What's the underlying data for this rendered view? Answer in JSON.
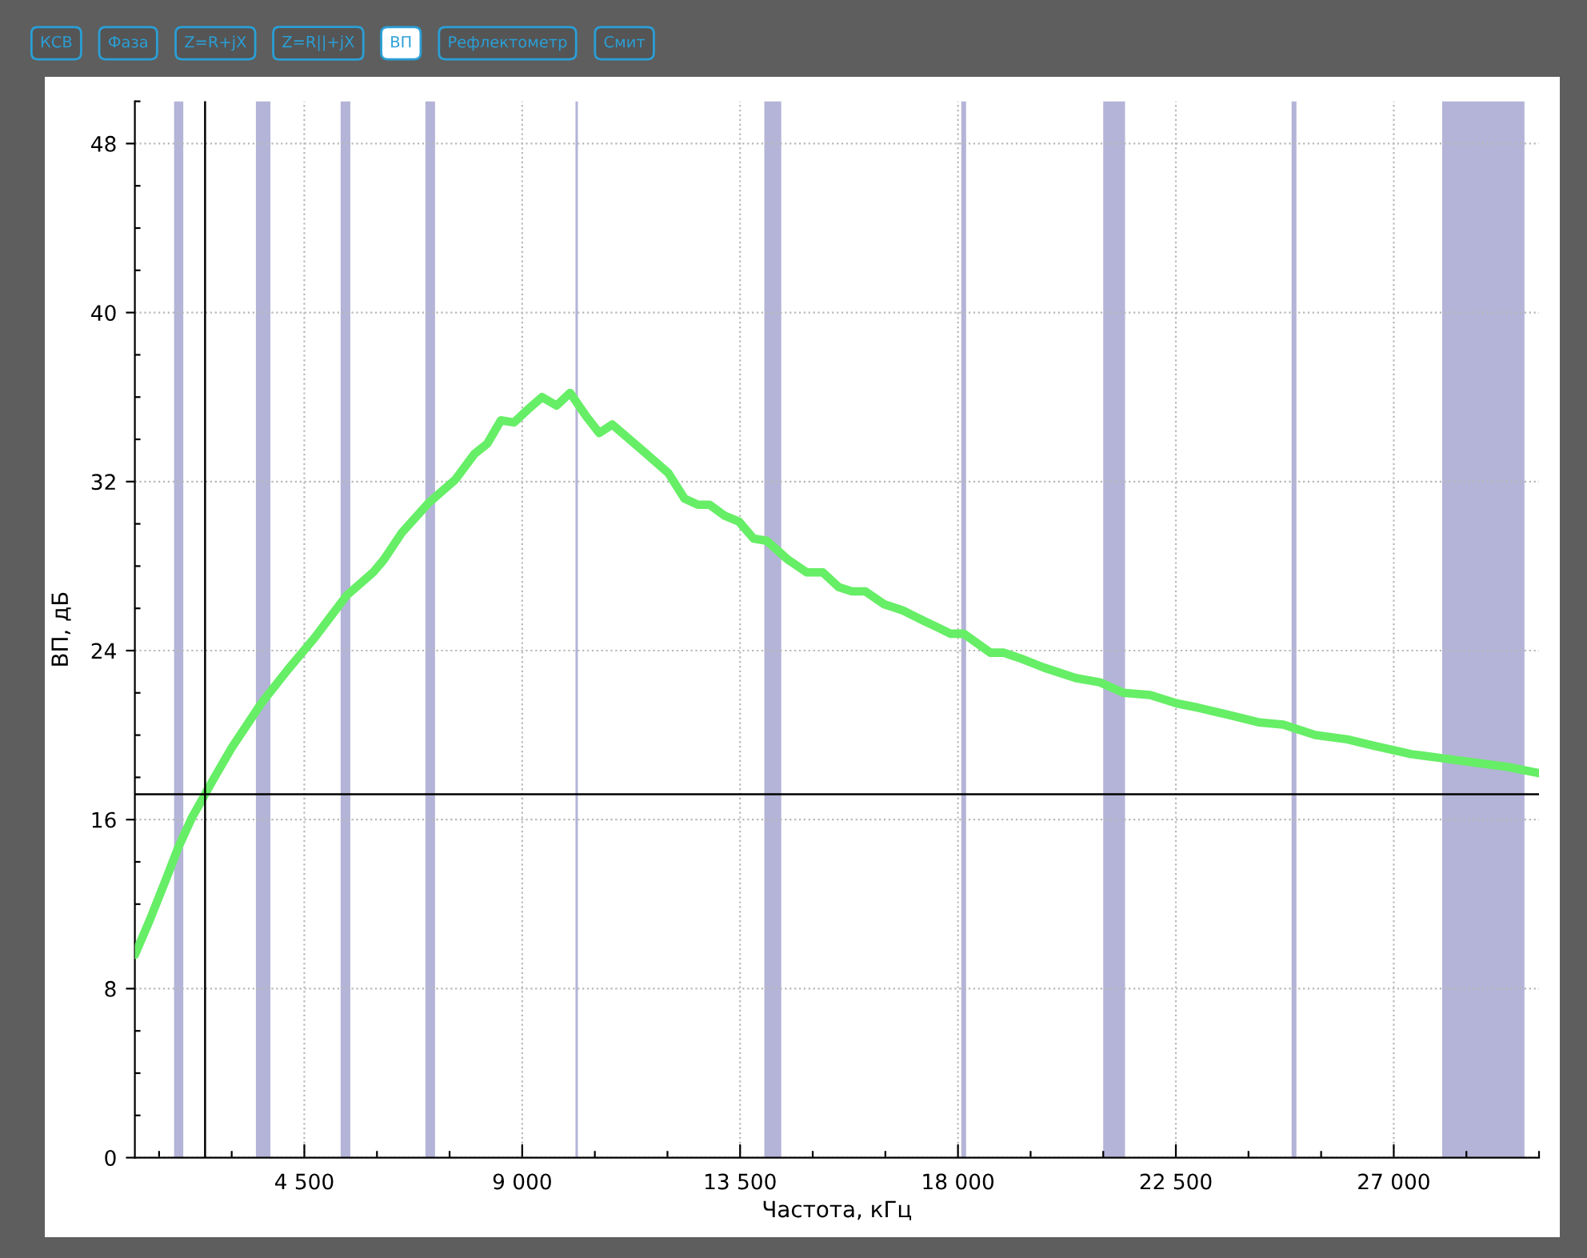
{
  "chart_data": {
    "type": "line",
    "xlabel": "Частота, кГц",
    "ylabel": "ВП, дБ",
    "annotations": [
      "КСВ",
      "Фаза",
      "Z=R+jX",
      "Z=R||+jX",
      "ВП",
      "Рефлектометр",
      "Смит"
    ],
    "x": [
      1000,
      1300,
      1630,
      1900,
      2180,
      2450,
      2620,
      3000,
      3610,
      4160,
      4710,
      5040,
      5370,
      5920,
      6140,
      6520,
      7070,
      7620,
      8010,
      8280,
      8560,
      8830,
      9110,
      9410,
      9710,
      9990,
      10320,
      10590,
      10860,
      11520,
      12020,
      12350,
      12630,
      12870,
      13170,
      13480,
      13780,
      14050,
      14490,
      14880,
      15210,
      15540,
      15810,
      16090,
      16470,
      16860,
      17300,
      17580,
      17850,
      18120,
      18670,
      18950,
      19330,
      19770,
      20430,
      20930,
      21420,
      21970,
      22520,
      22960,
      23510,
      24230,
      24720,
      25380,
      26040,
      26590,
      27360,
      28020,
      28680,
      29340,
      30000
    ],
    "series": [
      {
        "color": "#66ee66",
        "values": [
          9.6,
          11.2,
          13.1,
          14.7,
          16.1,
          17.2,
          17.9,
          19.4,
          21.5,
          23.1,
          24.6,
          25.6,
          26.6,
          27.7,
          28.3,
          29.6,
          31.0,
          32.1,
          33.3,
          33.8,
          34.9,
          34.8,
          35.4,
          36.0,
          35.6,
          36.2,
          35.1,
          34.3,
          34.7,
          33.4,
          32.4,
          31.2,
          30.9,
          30.9,
          30.4,
          30.1,
          29.3,
          29.2,
          28.3,
          27.7,
          27.7,
          27.0,
          26.8,
          26.8,
          26.2,
          25.9,
          25.4,
          25.1,
          24.8,
          24.8,
          23.9,
          23.9,
          23.6,
          23.2,
          22.7,
          22.5,
          22.0,
          21.9,
          21.5,
          21.3,
          21.0,
          20.6,
          20.5,
          20.0,
          19.8,
          19.5,
          19.1,
          18.9,
          18.7,
          18.5,
          18.2
        ]
      }
    ],
    "xlim": [
      1000,
      30000
    ],
    "xticks": [
      {
        "value": 4500,
        "label": "4 500"
      },
      {
        "value": 9000,
        "label": "9 000"
      },
      {
        "value": 13500,
        "label": "13 500"
      },
      {
        "value": 18000,
        "label": "18 000"
      },
      {
        "value": 22500,
        "label": "22 500"
      },
      {
        "value": 27000,
        "label": "27 000"
      }
    ],
    "ylim": [
      0,
      50
    ],
    "yticks": [
      0,
      8,
      16,
      24,
      32,
      40,
      48
    ],
    "grid": true,
    "line_style": "solid",
    "ref_lines": [
      {
        "axis": "x",
        "value": 2450,
        "color": "#000000"
      },
      {
        "axis": "y",
        "value": 17.2,
        "color": "#000000"
      }
    ],
    "bands": [
      {
        "axis": "x",
        "from": 1810,
        "to": 2000,
        "color": "#b4b4d8"
      },
      {
        "axis": "x",
        "from": 3500,
        "to": 3800,
        "color": "#b4b4d8"
      },
      {
        "axis": "x",
        "from": 5250,
        "to": 5450,
        "color": "#b4b4d8"
      },
      {
        "axis": "x",
        "from": 7000,
        "to": 7200,
        "color": "#b4b4d8"
      },
      {
        "axis": "x",
        "from": 10100,
        "to": 10150,
        "color": "#b4b4d8"
      },
      {
        "axis": "x",
        "from": 14000,
        "to": 14350,
        "color": "#b4b4d8"
      },
      {
        "axis": "x",
        "from": 18068,
        "to": 18168,
        "color": "#b4b4d8"
      },
      {
        "axis": "x",
        "from": 21000,
        "to": 21450,
        "color": "#b4b4d8"
      },
      {
        "axis": "x",
        "from": 24890,
        "to": 24990,
        "color": "#b4b4d8"
      },
      {
        "axis": "x",
        "from": 28000,
        "to": 29700,
        "color": "#b4b4d8"
      }
    ]
  }
}
